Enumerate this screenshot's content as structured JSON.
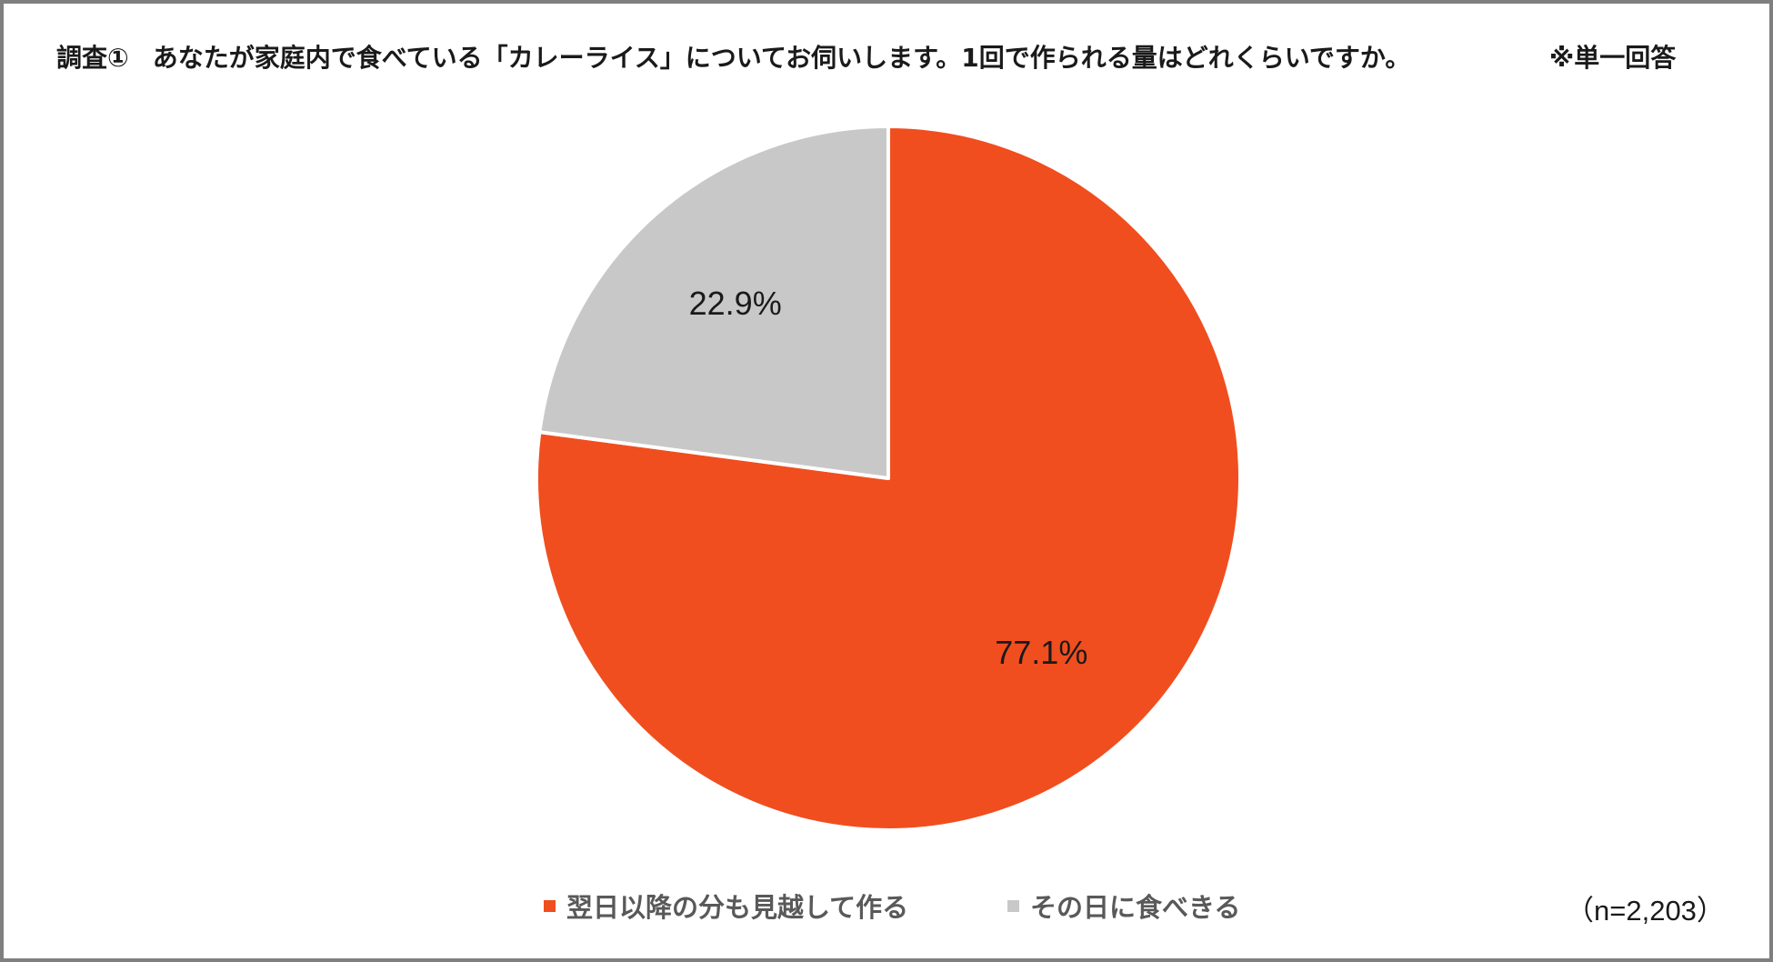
{
  "header": {
    "survey_no": "調査①",
    "question": "あなたが家庭内で食べている「カレーライス」についてお伺いします。1回で作られる量はどれくらいですか。",
    "note": "※単一回答"
  },
  "chart_data": {
    "type": "pie",
    "title": "",
    "start": "12 o'clock",
    "direction": "clockwise",
    "legend_position": "bottom",
    "unit": "%",
    "slices": [
      {
        "name": "翌日以降の分も見越して作る",
        "value": 77.1,
        "label": "77.1%",
        "color": "#f04e1f"
      },
      {
        "name": "その日に食べきる",
        "value": 22.9,
        "label": "22.9%",
        "color": "#c8c8c8"
      }
    ],
    "sample_size": "（n=2,203）"
  }
}
